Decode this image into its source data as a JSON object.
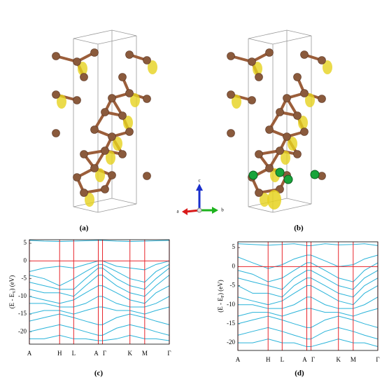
{
  "panels": {
    "a": "(a)",
    "b": "(b)",
    "c": "(c)",
    "d": "(d)"
  },
  "axes_triad": {
    "c": "c",
    "a": "a",
    "b": "b"
  },
  "chart_data": [
    {
      "type": "line",
      "ylabel": [
        "(E - E",
        "V",
        ") (eV)"
      ],
      "x": [
        0,
        0.21,
        0.43,
        0.63,
        0.8,
        0.98,
        1.04,
        1.24,
        1.43,
        1.64,
        1.8,
        1.99
      ],
      "xlim": [
        0,
        1.99
      ],
      "xticks": [
        {
          "value": 0,
          "label": "A"
        },
        {
          "value": 0.43,
          "label": "H"
        },
        {
          "value": 0.63,
          "label": "L"
        },
        {
          "value": 0.98,
          "label": "A"
        },
        {
          "value": 1.04,
          "label": "Γ"
        },
        {
          "value": 1.43,
          "label": "K"
        },
        {
          "value": 1.64,
          "label": "M"
        },
        {
          "value": 1.99,
          "label": "Γ"
        }
      ],
      "ylim": [
        -23.5,
        6
      ],
      "yticks": [
        5,
        0,
        -5,
        -10,
        -15,
        -20
      ],
      "refline": 0,
      "refcolor": "#e8252b",
      "series": [
        {
          "color": "#29b3d9",
          "values": [
            5.8,
            5.6,
            5.5,
            5.6,
            5.7,
            5.8,
            5.8,
            5.6,
            5.5,
            5.6,
            5.7,
            5.8
          ]
        },
        {
          "color": "#29b3d9",
          "values": [
            -3,
            -2,
            -1.5,
            -2,
            -1,
            0,
            0,
            -1.5,
            -2,
            -2.5,
            -1,
            0
          ]
        },
        {
          "color": "#29b3d9",
          "values": [
            -4,
            -5,
            -7,
            -5,
            -3,
            -1,
            -1,
            -3,
            -5,
            -6,
            -3,
            -1
          ]
        },
        {
          "color": "#29b3d9",
          "values": [
            -6,
            -7,
            -8,
            -8,
            -5,
            -2,
            -2,
            -5,
            -7,
            -8,
            -5,
            -2
          ]
        },
        {
          "color": "#29b3d9",
          "values": [
            -8,
            -9,
            -9,
            -10,
            -7,
            -4,
            -4,
            -7,
            -9,
            -10,
            -7,
            -4
          ]
        },
        {
          "color": "#29b3d9",
          "values": [
            -10,
            -11,
            -12,
            -11,
            -9,
            -7,
            -7,
            -9,
            -11,
            -12,
            -9,
            -7
          ]
        },
        {
          "color": "#29b3d9",
          "values": [
            -12,
            -12,
            -13,
            -13,
            -12,
            -10,
            -10,
            -12,
            -13,
            -13,
            -12,
            -10
          ]
        },
        {
          "color": "#29b3d9",
          "values": [
            -15,
            -14,
            -14,
            -15,
            -14,
            -13,
            -13,
            -14,
            -14,
            -15,
            -14,
            -13
          ]
        },
        {
          "color": "#29b3d9",
          "values": [
            -17,
            -16,
            -15,
            -16,
            -17,
            -18,
            -18,
            -16,
            -15,
            -16,
            -17,
            -18
          ]
        },
        {
          "color": "#29b3d9",
          "values": [
            -20,
            -19,
            -18,
            -19,
            -20,
            -21,
            -21,
            -19,
            -18,
            -19,
            -20,
            -21
          ]
        },
        {
          "color": "#29b3d9",
          "values": [
            -22,
            -22,
            -21,
            -22,
            -22,
            -22.5,
            -22.5,
            -22,
            -21,
            -22,
            -22,
            -22.5
          ]
        }
      ]
    },
    {
      "type": "line",
      "ylabel": [
        "(E - E",
        "F",
        ") (eV)"
      ],
      "x": [
        0,
        0.21,
        0.43,
        0.63,
        0.8,
        0.98,
        1.04,
        1.24,
        1.43,
        1.64,
        1.8,
        1.99
      ],
      "xlim": [
        0,
        1.99
      ],
      "xticks": [
        {
          "value": 0,
          "label": "A"
        },
        {
          "value": 0.43,
          "label": "H"
        },
        {
          "value": 0.63,
          "label": "L"
        },
        {
          "value": 0.98,
          "label": "A"
        },
        {
          "value": 1.04,
          "label": "Γ"
        },
        {
          "value": 1.43,
          "label": "K"
        },
        {
          "value": 1.64,
          "label": "M"
        },
        {
          "value": 1.99,
          "label": "Γ"
        }
      ],
      "ylim": [
        -22,
        6.5
      ],
      "yticks": [
        5,
        0,
        -5,
        -10,
        -15,
        -20
      ],
      "refline": 0,
      "refcolor": "#e8252b",
      "series": [
        {
          "color": "#29b3d9",
          "values": [
            6,
            5.8,
            5.6,
            5.8,
            6,
            5.5,
            5.5,
            6,
            5.7,
            5.8,
            6,
            5.5
          ]
        },
        {
          "color": "#29b3d9",
          "values": [
            2.5,
            1,
            -0.5,
            0.5,
            2,
            3,
            3,
            1.5,
            0,
            0.5,
            2,
            3
          ]
        },
        {
          "color": "#29b3d9",
          "values": [
            -1,
            -2,
            -4,
            -3,
            -1,
            1,
            1,
            -1,
            -3,
            -4,
            -1,
            1
          ]
        },
        {
          "color": "#29b3d9",
          "values": [
            -3,
            -4,
            -5,
            -6,
            -3,
            -1,
            -1,
            -3,
            -5,
            -6,
            -3,
            -1
          ]
        },
        {
          "color": "#29b3d9",
          "values": [
            -5,
            -7,
            -7,
            -8,
            -5,
            -3,
            -3,
            -5,
            -7,
            -8,
            -5,
            -3
          ]
        },
        {
          "color": "#29b3d9",
          "values": [
            -8,
            -9,
            -10,
            -9,
            -7,
            -5,
            -5,
            -7,
            -9,
            -10,
            -7,
            -5
          ]
        },
        {
          "color": "#29b3d9",
          "values": [
            -10,
            -10,
            -11,
            -11,
            -10,
            -8,
            -8,
            -10,
            -11,
            -11,
            -10,
            -8
          ]
        },
        {
          "color": "#29b3d9",
          "values": [
            -13,
            -12,
            -12,
            -13,
            -12,
            -11,
            -11,
            -12,
            -12,
            -13,
            -12,
            -11
          ]
        },
        {
          "color": "#29b3d9",
          "values": [
            -15,
            -14,
            -13,
            -14,
            -15,
            -16,
            -16,
            -14,
            -13,
            -14,
            -15,
            -16
          ]
        },
        {
          "color": "#29b3d9",
          "values": [
            -18,
            -17,
            -16,
            -17,
            -18,
            -19,
            -19,
            -17,
            -16,
            -17,
            -18,
            -19
          ]
        },
        {
          "color": "#29b3d9",
          "values": [
            -20,
            -20,
            -19,
            -20,
            -20,
            -21,
            -21,
            -20,
            -19,
            -20,
            -20,
            -21
          ]
        }
      ]
    }
  ]
}
